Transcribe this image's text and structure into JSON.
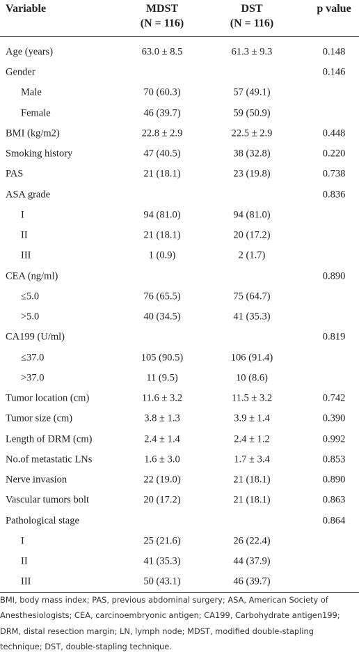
{
  "table": {
    "header": [
      "Variable",
      [
        "MDST",
        "(N = 116)"
      ],
      [
        "DST",
        "(N = 116)"
      ],
      "p value"
    ],
    "rows": [
      {
        "cells": [
          "Age (years)",
          "63.0 ± 8.5",
          "61.3 ± 9.3",
          "0.148"
        ]
      },
      {
        "cells": [
          "Gender",
          null,
          null,
          "0.146"
        ],
        "rows": [
          {
            "cells": [
              "Male",
              "70 (60.3)",
              "57 (49.1)",
              null
            ]
          },
          {
            "cells": [
              "Female",
              "46 (39.7)",
              "59 (50.9)",
              null
            ]
          }
        ]
      },
      {
        "cells": [
          "BMI (kg/m2)",
          "22.8 ± 2.9",
          "22.5 ± 2.9",
          "0.448"
        ]
      },
      {
        "cells": [
          "Smoking history",
          "47 (40.5)",
          "38 (32.8)",
          "0.220"
        ]
      },
      {
        "cells": [
          "PAS",
          "21 (18.1)",
          "23 (19.8)",
          "0.738"
        ]
      },
      {
        "cells": [
          "ASA grade",
          null,
          null,
          "0.836"
        ],
        "rows": [
          {
            "cells": [
              "I",
              "94 (81.0)",
              "94 (81.0)",
              null
            ]
          },
          {
            "cells": [
              "II",
              "21 (18.1)",
              "20 (17.2)",
              null
            ]
          },
          {
            "cells": [
              "III",
              "1 (0.9)",
              "2 (1.7)",
              null
            ]
          }
        ]
      },
      {
        "cells": [
          "CEA (ng/ml)",
          null,
          null,
          "0.890"
        ],
        "rows": [
          {
            "cells": [
              "≤5.0",
              "76 (65.5)",
              "75 (64.7)",
              null
            ]
          },
          {
            "cells": [
              ">5.0",
              "40 (34.5)",
              "41 (35.3)",
              null
            ]
          }
        ]
      },
      {
        "cells": [
          "CA199 (U/ml)",
          null,
          null,
          "0.819"
        ],
        "rows": [
          {
            "cells": [
              "≤37.0",
              "105 (90.5)",
              "106 (91.4)",
              null
            ]
          },
          {
            "cells": [
              ">37.0",
              "11 (9.5)",
              "10 (8.6)",
              null
            ]
          }
        ]
      },
      {
        "cells": [
          "Tumor location (cm)",
          "11.6 ± 3.2",
          "11.5 ± 3.2",
          "0.742"
        ]
      },
      {
        "cells": [
          "Tumor size (cm)",
          "3.8 ± 1.3",
          "3.9 ± 1.4",
          "0.390"
        ]
      },
      {
        "cells": [
          "Length of DRM (cm)",
          "2.4 ± 1.4",
          "2.4 ± 1.2",
          "0.992"
        ]
      },
      {
        "cells": [
          "No.of metastatic LNs",
          "1.6 ± 3.0",
          "1.7 ± 3.4",
          "0.853"
        ]
      },
      {
        "cells": [
          "Nerve invasion",
          "22 (19.0)",
          "21 (18.1)",
          "0.890"
        ]
      },
      {
        "cells": [
          "Vascular tumors bolt",
          "20 (17.2)",
          "21 (18.1)",
          "0.863"
        ]
      },
      {
        "cells": [
          "Pathological stage",
          null,
          null,
          "0.864"
        ],
        "rows": [
          {
            "cells": [
              "I",
              "25 (21.6)",
              "26 (22.4)",
              null
            ]
          },
          {
            "cells": [
              "II",
              "41 (35.3)",
              "44 (37.9)",
              null
            ]
          },
          {
            "cells": [
              "III",
              "50 (43.1)",
              "46 (39.7)",
              null
            ]
          }
        ]
      }
    ],
    "footnote": "BMI, body mass index; PAS, previous abdominal surgery; ASA, American Society of Anesthesiologists; CEA, carcinoembryonic antigen; CA199, Carbohydrate antigen199; DRM, distal resection margin; LN, lymph node; MDST, modified double-stapling technique; DST, double-stapling technique."
  }
}
